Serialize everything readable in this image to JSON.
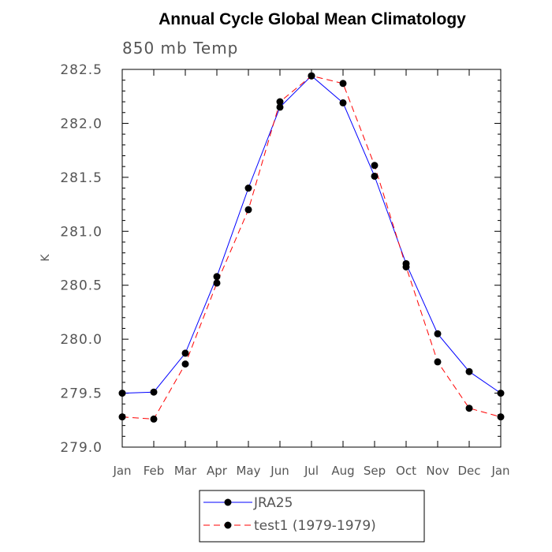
{
  "chart_data": {
    "type": "line",
    "title": "Annual Cycle Global Mean Climatology",
    "subtitle": "850 mb Temp",
    "xlabel": "",
    "ylabel": "K",
    "categories": [
      "Jan",
      "Feb",
      "Mar",
      "Apr",
      "May",
      "Jun",
      "Jul",
      "Aug",
      "Sep",
      "Oct",
      "Nov",
      "Dec",
      "Jan"
    ],
    "ylim": [
      279.0,
      282.5
    ],
    "yticks": [
      "279.0",
      "279.5",
      "280.0",
      "280.5",
      "281.0",
      "281.5",
      "282.0",
      "282.5"
    ],
    "grid": false,
    "legend_position": "bottom-center",
    "series": [
      {
        "name": "JRA25",
        "color": "#0000ff",
        "line_style": "solid",
        "marker": "filled-circle",
        "values": [
          279.5,
          279.51,
          279.87,
          280.58,
          281.4,
          282.15,
          282.44,
          282.19,
          281.51,
          280.7,
          280.05,
          279.7,
          279.5
        ]
      },
      {
        "name": "test1 (1979-1979)",
        "color": "#ff0000",
        "line_style": "dashed",
        "marker": "filled-circle",
        "values": [
          279.28,
          279.26,
          279.77,
          280.52,
          281.2,
          282.2,
          282.44,
          282.37,
          281.61,
          280.67,
          279.79,
          279.36,
          279.28
        ]
      }
    ]
  }
}
